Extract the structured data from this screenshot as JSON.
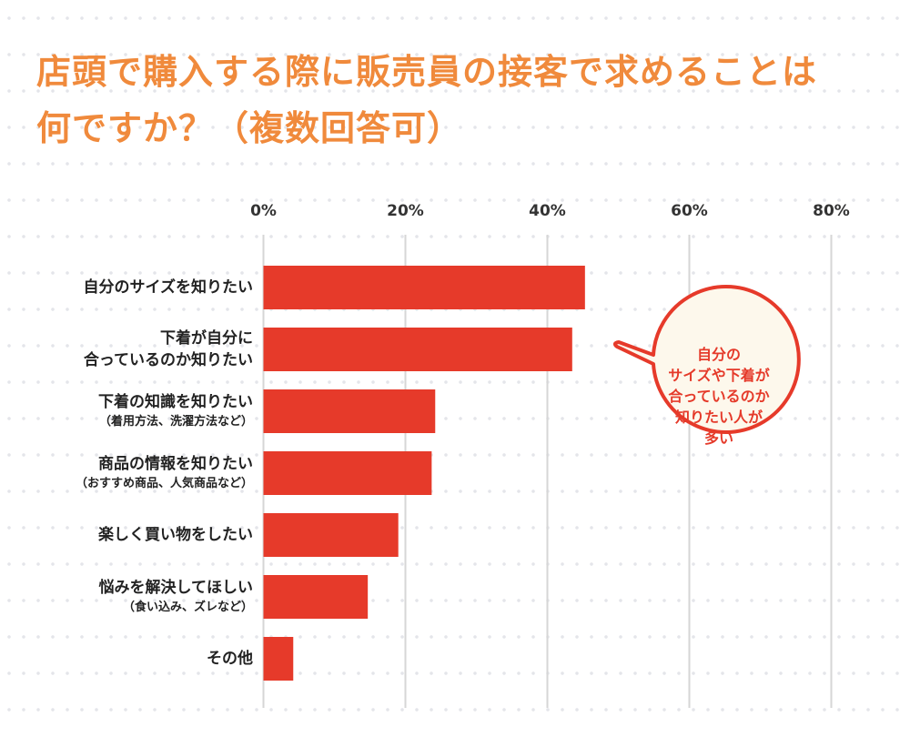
{
  "title_lines": [
    "店頭で購入する際に販売員の接客で求めることは",
    "何ですか？（複数回答可）"
  ],
  "chart_data": {
    "type": "bar",
    "orientation": "horizontal",
    "title": "店頭で購入する際に販売員の接客で求めることは何ですか？（複数回答可）",
    "categories": [
      {
        "label": [
          "自分のサイズを知りたい"
        ],
        "sub": ""
      },
      {
        "label": [
          "下着が自分に",
          "合っているのか知りたい"
        ],
        "sub": ""
      },
      {
        "label": [
          "下着の知識を知りたい"
        ],
        "sub": "（着用方法、洗濯方法など）"
      },
      {
        "label": [
          "商品の情報を知りたい"
        ],
        "sub": "（おすすめ商品、人気商品など）"
      },
      {
        "label": [
          "楽しく買い物をしたい"
        ],
        "sub": ""
      },
      {
        "label": [
          "悩みを解決してほしい"
        ],
        "sub": "（食い込み、ズレなど）"
      },
      {
        "label": [
          "その他"
        ],
        "sub": ""
      }
    ],
    "values": [
      45.3,
      43.5,
      24.2,
      23.7,
      19.0,
      14.7,
      4.2
    ],
    "unit": "%",
    "xlim": [
      0,
      80
    ],
    "xticks": [
      "0%",
      "20%",
      "40%",
      "60%",
      "80%"
    ],
    "tick_values": [
      0,
      20,
      40,
      60,
      80
    ],
    "grid": true,
    "bar_color": "#e63a2a",
    "annotation": [
      "自分の",
      "サイズや下着が",
      "合っているのか",
      "知りたい人が",
      "多い"
    ]
  },
  "colors": {
    "title": "#f08a3c",
    "bubble_fill": "#fdf8ec",
    "bubble_stroke": "#e63a2a",
    "grid": "#d6d6d6"
  }
}
